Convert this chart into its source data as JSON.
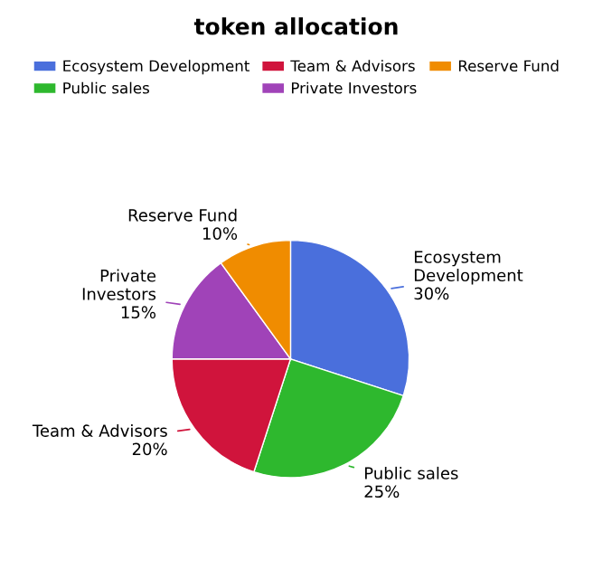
{
  "chart_data": {
    "type": "pie",
    "title": "token allocation",
    "categories": [
      "Ecosystem Development",
      "Public sales",
      "Team & Advisors",
      "Private Investors",
      "Reserve Fund"
    ],
    "values": [
      30,
      25,
      20,
      15,
      10
    ],
    "value_labels": [
      "30%",
      "25%",
      "20%",
      "15%",
      "10%"
    ],
    "colors": [
      "#4a6fdc",
      "#2eb82e",
      "#d0143c",
      "#a043b8",
      "#f08c00"
    ],
    "legend": "top"
  }
}
